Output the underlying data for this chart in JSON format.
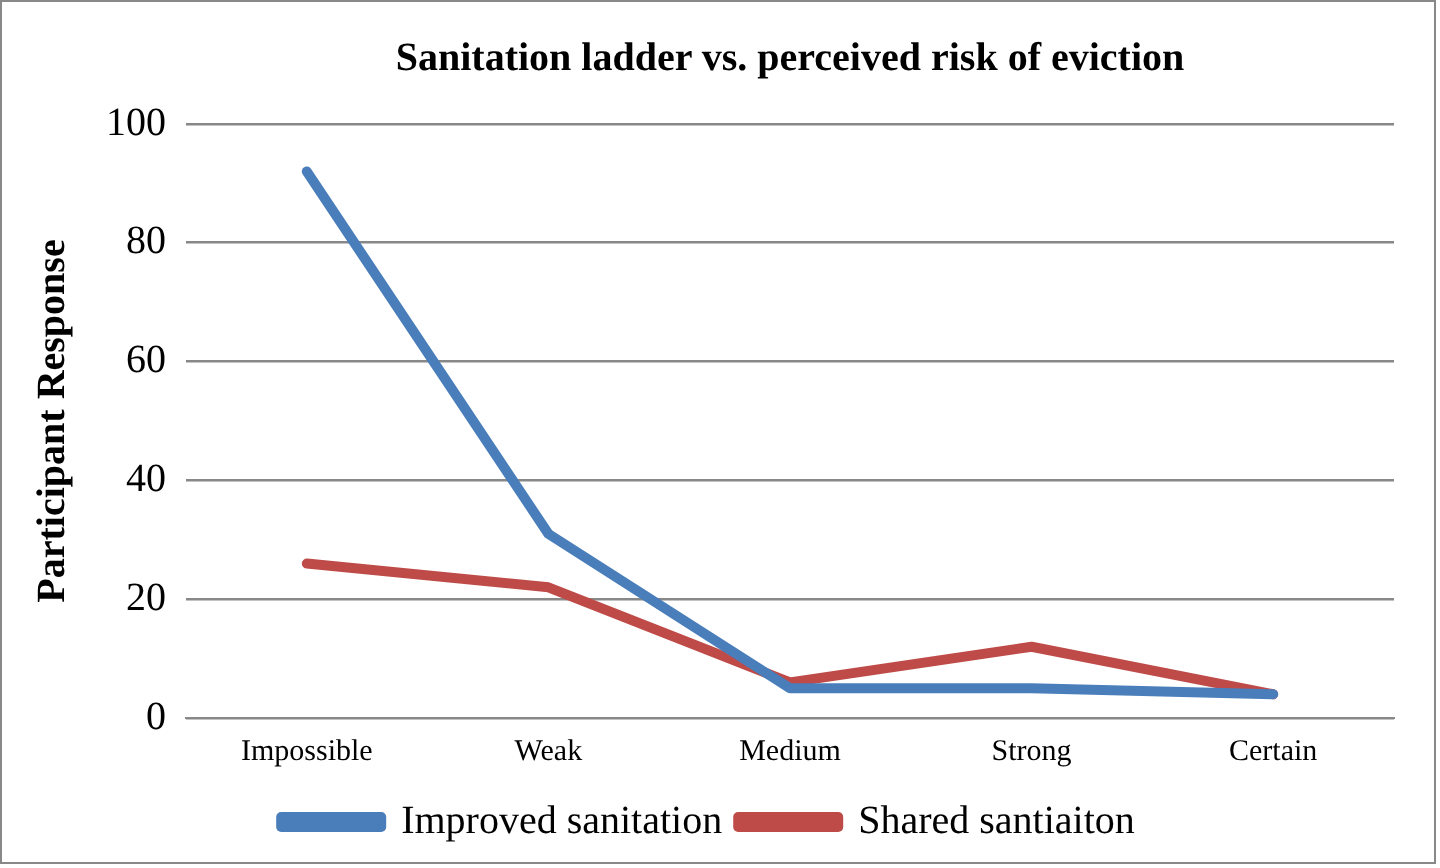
{
  "chart_data": {
    "type": "line",
    "title": "Sanitation ladder vs. perceived risk of eviction",
    "ylabel": "Participant Response",
    "categories": [
      "Impossible",
      "Weak",
      "Medium",
      "Strong",
      "Certain"
    ],
    "series": [
      {
        "name": "Improved sanitation",
        "color": "#4a7ebb",
        "values": [
          92,
          31,
          5,
          5,
          4
        ]
      },
      {
        "name": "Shared santiaiton",
        "color": "#be4b48",
        "values": [
          26,
          22,
          6,
          12,
          4
        ]
      }
    ],
    "ylim": [
      0,
      100
    ],
    "yticks": [
      0,
      20,
      40,
      60,
      80,
      100
    ],
    "grid": "y",
    "legend": "bottom",
    "marker": "none",
    "line_style": "solid"
  }
}
